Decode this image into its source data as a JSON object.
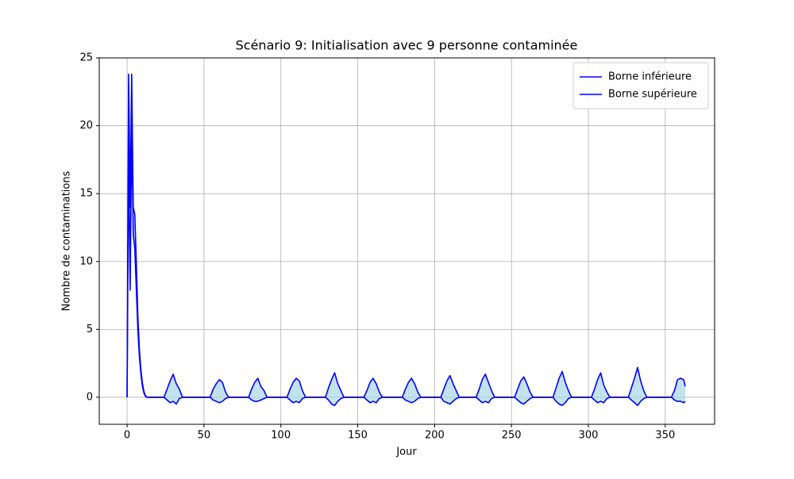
{
  "chart_data": {
    "type": "line",
    "title": "Scénario 9: Initialisation avec 9 personne contaminée",
    "x_label": "Jour",
    "y_label": "Nombre de contaminations",
    "xlim": [
      -18.1,
      382.1
    ],
    "ylim": [
      -1.99,
      25
    ],
    "xticks": [
      0,
      50,
      100,
      150,
      200,
      250,
      300,
      350
    ],
    "yticks": [
      0,
      5,
      10,
      15,
      20,
      25
    ],
    "grid": true,
    "legend": "upper right",
    "fill_color": "#add8e6",
    "x": [
      0,
      1,
      2,
      3,
      4,
      5,
      6,
      7,
      8,
      9,
      10,
      11,
      12,
      13,
      20,
      24,
      26,
      28,
      30,
      32,
      34,
      36,
      54,
      56,
      58,
      60,
      62,
      64,
      66,
      79,
      81,
      83,
      85,
      87,
      89,
      91,
      104,
      106,
      108,
      110,
      112,
      114,
      116,
      129,
      131,
      133,
      135,
      137,
      139,
      141,
      154,
      156,
      158,
      160,
      162,
      164,
      166,
      179,
      181,
      183,
      185,
      187,
      189,
      191,
      204,
      206,
      208,
      210,
      212,
      214,
      216,
      227,
      229,
      231,
      233,
      235,
      237,
      239,
      252,
      254,
      256,
      258,
      260,
      262,
      264,
      277,
      279,
      281,
      283,
      285,
      287,
      289,
      302,
      304,
      306,
      308,
      310,
      312,
      314,
      326,
      328,
      330,
      332,
      334,
      336,
      338,
      354,
      356,
      358,
      360,
      362,
      363
    ],
    "series": [
      {
        "name": "Borne inférieure",
        "color": "#0000ff",
        "values": [
          0,
          18,
          7.9,
          20,
          12,
          11,
          8,
          5,
          3,
          1.7,
          0.8,
          0.3,
          0.05,
          0,
          0,
          0,
          -0.2,
          -0.4,
          -0.3,
          -0.5,
          -0.1,
          0,
          0,
          -0.2,
          -0.3,
          -0.4,
          -0.3,
          -0.1,
          0,
          0,
          -0.2,
          -0.3,
          -0.3,
          -0.2,
          -0.1,
          0,
          0,
          -0.2,
          -0.4,
          -0.3,
          -0.4,
          -0.1,
          0,
          0,
          -0.2,
          -0.5,
          -0.6,
          -0.3,
          -0.1,
          0,
          0,
          -0.2,
          -0.4,
          -0.3,
          -0.4,
          -0.1,
          0,
          0,
          -0.2,
          -0.3,
          -0.4,
          -0.3,
          -0.1,
          0,
          0,
          -0.3,
          -0.4,
          -0.5,
          -0.3,
          -0.1,
          0,
          0,
          -0.2,
          -0.4,
          -0.3,
          -0.4,
          -0.1,
          0,
          0,
          -0.2,
          -0.4,
          -0.5,
          -0.3,
          -0.1,
          0,
          0,
          -0.3,
          -0.5,
          -0.6,
          -0.4,
          -0.1,
          0,
          0,
          -0.2,
          -0.4,
          -0.3,
          -0.4,
          -0.1,
          0,
          0,
          -0.2,
          -0.4,
          -0.6,
          -0.3,
          -0.1,
          0,
          0,
          -0.2,
          -0.3,
          -0.3,
          -0.4,
          -0.3
        ]
      },
      {
        "name": "Borne supérieure",
        "color": "#0000ff",
        "values": [
          0,
          23.8,
          14,
          23.8,
          14,
          13.5,
          10,
          6,
          3.5,
          2,
          1,
          0.4,
          0.1,
          0,
          0,
          0,
          0.6,
          1.2,
          1.7,
          1,
          0.6,
          0,
          0,
          0.6,
          1,
          1.3,
          1.1,
          0.4,
          0,
          0,
          0.6,
          1.1,
          1.4,
          0.8,
          0.5,
          0,
          0,
          0.6,
          1.1,
          1.4,
          1.2,
          0.5,
          0,
          0,
          0.7,
          1.3,
          1.8,
          1,
          0.5,
          0,
          0,
          0.5,
          1.1,
          1.4,
          1,
          0.4,
          0,
          0,
          0.6,
          1.1,
          1.4,
          1,
          0.4,
          0,
          0,
          0.6,
          1.2,
          1.6,
          1,
          0.5,
          0,
          0,
          0.6,
          1.3,
          1.7,
          1.1,
          0.5,
          0,
          0,
          0.6,
          1.2,
          1.5,
          1,
          0.4,
          0,
          0,
          0.7,
          1.4,
          1.9,
          1.1,
          0.5,
          0,
          0,
          0.6,
          1.3,
          1.8,
          0.9,
          0.4,
          0,
          0,
          0.7,
          1.4,
          2.2,
          1.2,
          0.5,
          0,
          0,
          0.5,
          1.3,
          1.4,
          1.3,
          0.8
        ]
      }
    ]
  }
}
